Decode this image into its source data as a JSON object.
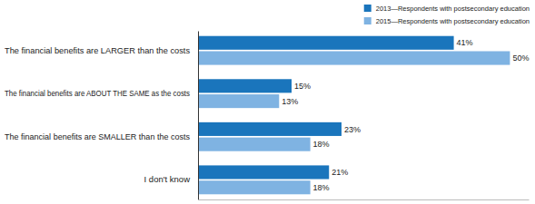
{
  "chart_data": {
    "type": "bar",
    "orientation": "horizontal",
    "categories": [
      "The financial benefits are LARGER than the costs",
      "The financial benefits are ABOUT THE SAME as the costs",
      "The financial benefits are  SMALLER than the costs",
      "I don't know"
    ],
    "series": [
      {
        "name": "2013—Respondents with postsecondary education",
        "color": "#1a75bc",
        "values": [
          41,
          15,
          23,
          21
        ],
        "value_labels": [
          "41%",
          "15%",
          "23%",
          "21%"
        ]
      },
      {
        "name": "2015—Respondents with postsecondary education",
        "color": "#7fb3e2",
        "values": [
          50,
          13,
          18,
          18
        ],
        "value_labels": [
          "50%",
          "13%",
          "18%",
          "18%"
        ]
      }
    ],
    "xlim": [
      0,
      53
    ],
    "tick_labels": false,
    "data_labels": true,
    "legend": "top-right",
    "grid": false
  }
}
